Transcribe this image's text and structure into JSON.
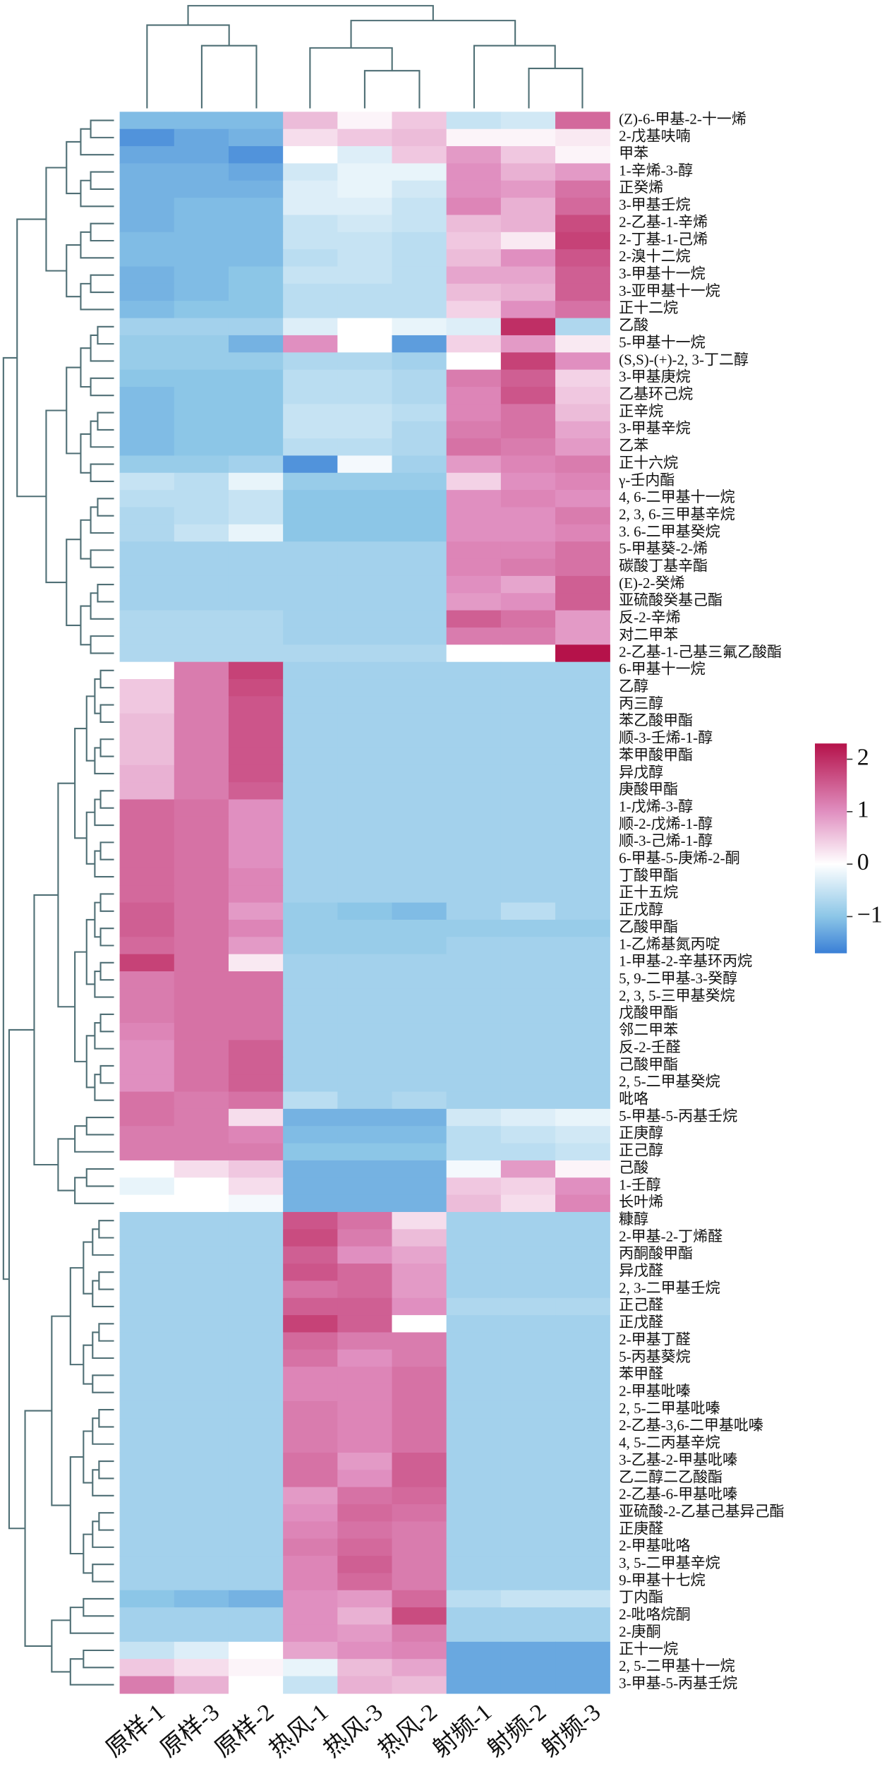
{
  "chart_data": {
    "type": "heatmap",
    "categories": [
      "原样-1",
      "原样-3",
      "原样-2",
      "热风-1",
      "热风-3",
      "热风-2",
      "射频-1",
      "射频-2",
      "射频-3"
    ],
    "rows": [
      "(Z)-6-甲基-2-十一烯",
      "2-戊基呋喃",
      "甲苯",
      "1-辛烯-3-醇",
      "正癸烯",
      "3-甲基壬烷",
      "2-乙基-1-辛烯",
      "2-丁基-1-己烯",
      "2-溴十二烷",
      "3-甲基十一烷",
      "3-亚甲基十一烷",
      "正十二烷",
      "乙酸",
      "5-甲基十一烷",
      "(S,S)-(+)-2, 3-丁二醇",
      "3-甲基庚烷",
      "乙基环己烷",
      "正辛烷",
      "3-甲基辛烷",
      "乙苯",
      "正十六烷",
      "γ-壬内酯",
      "4, 6-二甲基十一烷",
      "2, 3, 6-三甲基辛烷",
      "3. 6-二甲基癸烷",
      "5-甲基葵-2-烯",
      "碳酸丁基辛酯",
      "(E)-2-癸烯",
      "亚硫酸癸基己酯",
      "反-2-辛烯",
      "对二甲苯",
      "2-乙基-1-己基三氟乙酸酯",
      "6-甲基十一烷",
      "乙醇",
      "丙三醇",
      "苯乙酸甲酯",
      "顺-3-壬烯-1-醇",
      "苯甲酸甲酯",
      "异戊醇",
      "庚酸甲酯",
      "1-戊烯-3-醇",
      "顺-2-戊烯-1-醇",
      "顺-3-己烯-1-醇",
      "6-甲基-5-庚烯-2-酮",
      "丁酸甲酯",
      "正十五烷",
      "正戊醇",
      "乙酸甲酯",
      "1-乙烯基氮丙啶",
      "1-甲基-2-辛基环丙烷",
      "5, 9-二甲基-3-癸醇",
      "2, 3, 5-三甲基癸烷",
      "戊酸甲酯",
      "邻二甲苯",
      "反-2-壬醛",
      "己酸甲酯",
      "2, 5-二甲基癸烷",
      "吡咯",
      "5-甲基-5-丙基壬烷",
      "正庚醇",
      "正己醇",
      "己酸",
      "1-壬醇",
      "长叶烯",
      "糠醇",
      "2-甲基-2-丁烯醛",
      "丙酮酸甲酯",
      "异戊醛",
      "2, 3-二甲基壬烷",
      "正己醛",
      "正戊醛",
      "2-甲基丁醛",
      "5-丙基葵烷",
      "苯甲醛",
      "2-甲基吡嗪",
      "2, 5-二甲基吡嗪",
      "2-乙基-3,6-二甲基吡嗪",
      "4, 5-二丙基辛烷",
      "3-乙基-2-甲基吡嗪",
      "乙二醇二乙酸酯",
      "2-乙基-6-甲基吡嗪",
      "亚硫酸-2-乙基己基异己酯",
      "正庚醛",
      "2-甲基吡咯",
      "3, 5-二甲基辛烷",
      "9-甲基十七烷",
      "丁内酯",
      "2-吡咯烷酮",
      "2-庚酮",
      "正十一烷",
      "2, 5-二甲基十一烷",
      "3-甲基-5-丙基壬烷"
    ],
    "values": [
      [
        -1.1,
        -1.1,
        -1.1,
        0.6,
        0.1,
        0.5,
        -0.5,
        -0.4,
        1.4
      ],
      [
        -1.5,
        -1.3,
        -1.2,
        0.3,
        0.5,
        0.6,
        0.1,
        0.1,
        0.2
      ],
      [
        -1.3,
        -1.3,
        -1.5,
        0.0,
        -0.3,
        0.5,
        0.9,
        0.5,
        0.1
      ],
      [
        -1.2,
        -1.2,
        -1.3,
        -0.4,
        -0.2,
        -0.2,
        1.0,
        0.7,
        0.9
      ],
      [
        -1.2,
        -1.2,
        -1.2,
        -0.3,
        -0.2,
        -0.4,
        1.0,
        0.9,
        1.3
      ],
      [
        -1.2,
        -1.1,
        -1.1,
        -0.3,
        -0.3,
        -0.5,
        1.1,
        0.7,
        1.4
      ],
      [
        -1.2,
        -1.1,
        -1.1,
        -0.5,
        -0.4,
        -0.5,
        0.6,
        0.7,
        1.7
      ],
      [
        -1.1,
        -1.1,
        -1.1,
        -0.5,
        -0.5,
        -0.6,
        0.5,
        0.2,
        1.8
      ],
      [
        -1.1,
        -1.1,
        -1.1,
        -0.6,
        -0.5,
        -0.6,
        0.6,
        1.0,
        1.6
      ],
      [
        -1.2,
        -1.1,
        -1.0,
        -0.5,
        -0.5,
        -0.6,
        0.8,
        0.8,
        1.5
      ],
      [
        -1.2,
        -1.1,
        -1.0,
        -0.6,
        -0.6,
        -0.6,
        0.6,
        0.7,
        1.5
      ],
      [
        -1.1,
        -1.0,
        -1.0,
        -0.6,
        -0.6,
        -0.6,
        0.4,
        1.0,
        1.3
      ],
      [
        -0.8,
        -0.8,
        -0.8,
        -0.3,
        0.0,
        -0.2,
        -0.3,
        2.0,
        -0.7
      ],
      [
        -0.9,
        -0.9,
        -1.2,
        1.0,
        0.0,
        -1.4,
        0.4,
        0.9,
        0.2
      ],
      [
        -0.9,
        -0.9,
        -0.9,
        -0.7,
        -0.7,
        -0.8,
        0.0,
        1.8,
        1.0
      ],
      [
        -1.0,
        -1.0,
        -1.0,
        -0.6,
        -0.6,
        -0.7,
        1.2,
        1.5,
        0.4
      ],
      [
        -1.1,
        -1.0,
        -1.0,
        -0.6,
        -0.6,
        -0.7,
        1.1,
        1.6,
        0.5
      ],
      [
        -1.1,
        -1.0,
        -1.0,
        -0.5,
        -0.5,
        -0.6,
        1.1,
        1.3,
        0.6
      ],
      [
        -1.1,
        -1.0,
        -1.0,
        -0.5,
        -0.5,
        -0.7,
        1.2,
        1.3,
        0.8
      ],
      [
        -1.1,
        -1.0,
        -1.0,
        -0.6,
        -0.6,
        -0.7,
        1.3,
        1.2,
        0.9
      ],
      [
        -0.9,
        -0.9,
        -0.8,
        -1.5,
        -0.1,
        -0.8,
        0.9,
        1.1,
        1.2
      ],
      [
        -0.5,
        -0.6,
        -0.2,
        -0.9,
        -0.9,
        -0.9,
        0.4,
        1.0,
        1.1
      ],
      [
        -0.6,
        -0.6,
        -0.5,
        -1.0,
        -1.0,
        -1.0,
        1.0,
        1.1,
        1.0
      ],
      [
        -0.7,
        -0.6,
        -0.5,
        -1.0,
        -1.0,
        -1.0,
        1.0,
        1.0,
        1.2
      ],
      [
        -0.7,
        -0.5,
        -0.2,
        -1.0,
        -1.0,
        -1.0,
        1.0,
        1.0,
        1.1
      ],
      [
        -0.8,
        -0.8,
        -0.8,
        -0.8,
        -0.8,
        -0.8,
        1.1,
        1.1,
        1.3
      ],
      [
        -0.8,
        -0.8,
        -0.8,
        -0.8,
        -0.8,
        -0.8,
        1.1,
        1.2,
        1.3
      ],
      [
        -0.8,
        -0.8,
        -0.8,
        -0.8,
        -0.8,
        -0.8,
        1.0,
        0.8,
        1.5
      ],
      [
        -0.8,
        -0.8,
        -0.8,
        -0.8,
        -0.8,
        -0.8,
        0.9,
        1.0,
        1.5
      ],
      [
        -0.7,
        -0.7,
        -0.7,
        -0.8,
        -0.8,
        -0.8,
        1.5,
        1.3,
        0.9
      ],
      [
        -0.7,
        -0.7,
        -0.7,
        -0.8,
        -0.8,
        -0.8,
        1.2,
        1.2,
        0.9
      ],
      [
        -0.7,
        -0.7,
        -0.7,
        -0.7,
        -0.7,
        -0.7,
        0.0,
        0.0,
        2.3
      ],
      [
        0.0,
        1.2,
        1.8,
        -0.8,
        -0.8,
        -0.8,
        -0.8,
        -0.8,
        -0.8
      ],
      [
        0.5,
        1.2,
        1.7,
        -0.8,
        -0.8,
        -0.8,
        -0.8,
        -0.8,
        -0.8
      ],
      [
        0.5,
        1.2,
        1.6,
        -0.8,
        -0.8,
        -0.8,
        -0.8,
        -0.8,
        -0.8
      ],
      [
        0.6,
        1.2,
        1.6,
        -0.8,
        -0.8,
        -0.8,
        -0.8,
        -0.8,
        -0.8
      ],
      [
        0.6,
        1.2,
        1.6,
        -0.8,
        -0.8,
        -0.8,
        -0.8,
        -0.8,
        -0.8
      ],
      [
        0.6,
        1.2,
        1.6,
        -0.8,
        -0.8,
        -0.8,
        -0.8,
        -0.8,
        -0.8
      ],
      [
        0.7,
        1.2,
        1.6,
        -0.8,
        -0.8,
        -0.8,
        -0.8,
        -0.8,
        -0.8
      ],
      [
        0.7,
        1.2,
        1.5,
        -0.8,
        -0.8,
        -0.8,
        -0.8,
        -0.8,
        -0.8
      ],
      [
        1.4,
        1.3,
        1.0,
        -0.8,
        -0.8,
        -0.8,
        -0.8,
        -0.8,
        -0.8
      ],
      [
        1.4,
        1.3,
        1.0,
        -0.8,
        -0.8,
        -0.8,
        -0.8,
        -0.8,
        -0.8
      ],
      [
        1.4,
        1.3,
        1.0,
        -0.8,
        -0.8,
        -0.8,
        -0.8,
        -0.8,
        -0.8
      ],
      [
        1.4,
        1.3,
        1.0,
        -0.8,
        -0.8,
        -0.8,
        -0.8,
        -0.8,
        -0.8
      ],
      [
        1.4,
        1.3,
        1.1,
        -0.8,
        -0.8,
        -0.8,
        -0.8,
        -0.8,
        -0.8
      ],
      [
        1.4,
        1.3,
        1.1,
        -0.8,
        -0.8,
        -0.8,
        -0.8,
        -0.8,
        -0.8
      ],
      [
        1.5,
        1.3,
        0.9,
        -0.9,
        -1.0,
        -1.1,
        -0.8,
        -0.6,
        -0.8
      ],
      [
        1.5,
        1.3,
        1.1,
        -0.9,
        -0.9,
        -0.9,
        -0.9,
        -0.9,
        -0.9
      ],
      [
        1.4,
        1.3,
        0.9,
        -0.9,
        -0.9,
        -0.9,
        -0.8,
        -0.8,
        -0.8
      ],
      [
        1.8,
        1.3,
        0.2,
        -0.8,
        -0.8,
        -0.8,
        -0.8,
        -0.8,
        -0.8
      ],
      [
        1.2,
        1.3,
        1.3,
        -0.8,
        -0.8,
        -0.8,
        -0.8,
        -0.8,
        -0.8
      ],
      [
        1.2,
        1.3,
        1.3,
        -0.8,
        -0.8,
        -0.8,
        -0.8,
        -0.8,
        -0.8
      ],
      [
        1.2,
        1.3,
        1.3,
        -0.8,
        -0.8,
        -0.8,
        -0.8,
        -0.8,
        -0.8
      ],
      [
        1.1,
        1.3,
        1.3,
        -0.8,
        -0.8,
        -0.8,
        -0.8,
        -0.8,
        -0.8
      ],
      [
        1.0,
        1.3,
        1.5,
        -0.8,
        -0.8,
        -0.8,
        -0.8,
        -0.8,
        -0.8
      ],
      [
        1.0,
        1.3,
        1.5,
        -0.8,
        -0.8,
        -0.8,
        -0.8,
        -0.8,
        -0.8
      ],
      [
        1.0,
        1.3,
        1.5,
        -0.8,
        -0.8,
        -0.8,
        -0.8,
        -0.8,
        -0.8
      ],
      [
        1.3,
        1.2,
        1.3,
        -0.6,
        -0.8,
        -0.7,
        -0.8,
        -0.8,
        -0.8
      ],
      [
        1.3,
        1.2,
        0.3,
        -1.2,
        -1.2,
        -1.2,
        -0.4,
        -0.3,
        -0.2
      ],
      [
        1.2,
        1.2,
        1.1,
        -1.1,
        -1.1,
        -1.1,
        -0.6,
        -0.5,
        -0.4
      ],
      [
        1.2,
        1.2,
        1.2,
        -1.0,
        -1.0,
        -1.0,
        -0.6,
        -0.6,
        -0.5
      ],
      [
        0.0,
        0.3,
        0.5,
        -1.2,
        -1.2,
        -1.2,
        -0.1,
        0.9,
        0.1
      ],
      [
        -0.2,
        0.0,
        0.3,
        -1.2,
        -1.2,
        -1.2,
        0.5,
        0.4,
        1.0
      ],
      [
        0.0,
        0.0,
        -0.1,
        -1.2,
        -1.2,
        -1.2,
        0.6,
        0.3,
        1.1
      ],
      [
        -0.8,
        -0.8,
        -0.8,
        1.6,
        1.3,
        0.3,
        -0.8,
        -0.8,
        -0.8
      ],
      [
        -0.8,
        -0.8,
        -0.8,
        1.7,
        1.2,
        0.6,
        -0.8,
        -0.8,
        -0.8
      ],
      [
        -0.8,
        -0.8,
        -0.8,
        1.5,
        1.0,
        0.8,
        -0.8,
        -0.8,
        -0.8
      ],
      [
        -0.8,
        -0.8,
        -0.8,
        1.6,
        1.4,
        0.9,
        -0.8,
        -0.8,
        -0.8
      ],
      [
        -0.8,
        -0.8,
        -0.8,
        1.3,
        1.4,
        0.9,
        -0.8,
        -0.8,
        -0.8
      ],
      [
        -0.8,
        -0.8,
        -0.8,
        1.5,
        1.5,
        1.0,
        -0.7,
        -0.7,
        -0.7
      ],
      [
        -0.8,
        -0.8,
        -0.8,
        1.8,
        1.5,
        0.0,
        -0.8,
        -0.8,
        -0.8
      ],
      [
        -0.8,
        -0.8,
        -0.8,
        1.4,
        1.2,
        1.2,
        -0.8,
        -0.8,
        -0.8
      ],
      [
        -0.8,
        -0.8,
        -0.8,
        1.3,
        1.0,
        1.2,
        -0.8,
        -0.8,
        -0.8
      ],
      [
        -0.8,
        -0.8,
        -0.8,
        1.1,
        1.1,
        1.3,
        -0.8,
        -0.8,
        -0.8
      ],
      [
        -0.8,
        -0.8,
        -0.8,
        1.1,
        1.1,
        1.3,
        -0.8,
        -0.8,
        -0.8
      ],
      [
        -0.8,
        -0.8,
        -0.8,
        1.2,
        1.1,
        1.3,
        -0.8,
        -0.8,
        -0.8
      ],
      [
        -0.8,
        -0.8,
        -0.8,
        1.2,
        1.1,
        1.3,
        -0.8,
        -0.8,
        -0.8
      ],
      [
        -0.8,
        -0.8,
        -0.8,
        1.2,
        1.1,
        1.3,
        -0.8,
        -0.8,
        -0.8
      ],
      [
        -0.8,
        -0.8,
        -0.8,
        1.3,
        0.9,
        1.5,
        -0.8,
        -0.8,
        -0.8
      ],
      [
        -0.8,
        -0.8,
        -0.8,
        1.3,
        1.0,
        1.5,
        -0.8,
        -0.8,
        -0.8
      ],
      [
        -0.8,
        -0.8,
        -0.8,
        0.9,
        1.3,
        1.4,
        -0.8,
        -0.8,
        -0.8
      ],
      [
        -0.8,
        -0.8,
        -0.8,
        1.0,
        1.4,
        1.3,
        -0.8,
        -0.8,
        -0.8
      ],
      [
        -0.8,
        -0.8,
        -0.8,
        1.1,
        1.3,
        1.2,
        -0.8,
        -0.8,
        -0.8
      ],
      [
        -0.8,
        -0.8,
        -0.8,
        1.2,
        1.4,
        1.2,
        -0.8,
        -0.8,
        -0.8
      ],
      [
        -0.8,
        -0.8,
        -0.8,
        1.1,
        1.5,
        1.2,
        -0.8,
        -0.8,
        -0.8
      ],
      [
        -0.8,
        -0.8,
        -0.8,
        1.1,
        1.4,
        1.2,
        -0.8,
        -0.8,
        -0.8
      ],
      [
        -1.0,
        -1.1,
        -1.2,
        1.0,
        0.9,
        1.4,
        -0.6,
        -0.5,
        -0.5
      ],
      [
        -0.8,
        -0.8,
        -0.8,
        1.0,
        0.7,
        1.7,
        -0.8,
        -0.8,
        -0.8
      ],
      [
        -0.8,
        -0.8,
        -0.8,
        1.0,
        0.9,
        1.2,
        -0.8,
        -0.8,
        -0.8
      ],
      [
        -0.5,
        -0.3,
        0.0,
        0.8,
        1.0,
        1.1,
        -1.3,
        -1.3,
        -1.3
      ],
      [
        0.5,
        0.3,
        0.1,
        -0.2,
        0.6,
        0.8,
        -1.3,
        -1.3,
        -1.3
      ],
      [
        1.2,
        0.7,
        0.0,
        -0.5,
        0.7,
        0.6,
        -1.3,
        -1.3,
        -1.3
      ]
    ],
    "clim": [
      -1.7,
      2.3
    ],
    "colorbar_ticks": [
      {
        "value": -1,
        "label": "−1"
      },
      0,
      1,
      2
    ],
    "colorscale": [
      [
        -1.7,
        "#3a7fd6"
      ],
      [
        -1,
        "#8cc6e7"
      ],
      [
        0,
        "#ffffff"
      ],
      [
        1,
        "#e08fc0"
      ],
      [
        2.3,
        "#b5124a"
      ]
    ]
  }
}
